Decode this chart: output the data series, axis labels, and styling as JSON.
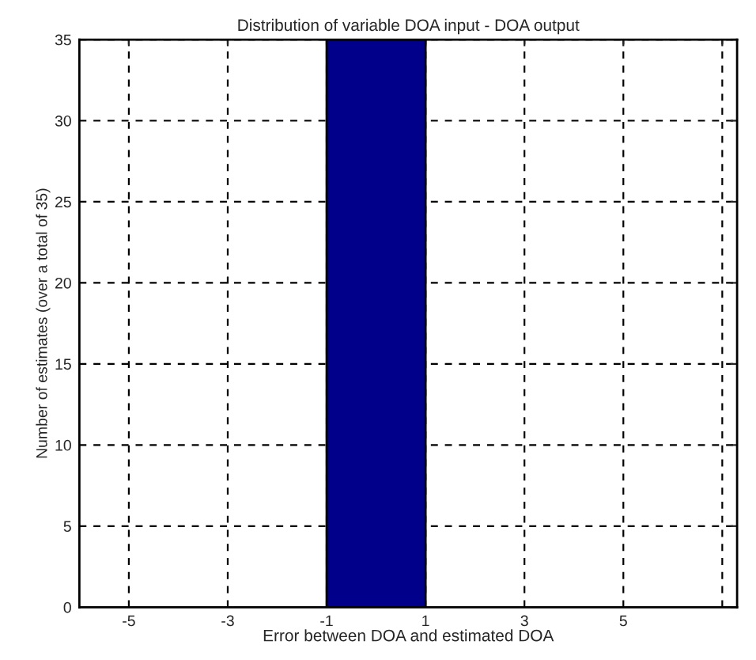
{
  "chart_data": {
    "type": "histogram",
    "title": "Distribution of variable DOA input - DOA output",
    "xlabel": "Error between DOA and estimated DOA",
    "ylabel": "Number of estimates (over a total of 35)",
    "bins": [
      -1,
      1
    ],
    "values": [
      35
    ],
    "color": "#00008b",
    "xlim": [
      -6,
      7.3
    ],
    "xticks": [
      -5,
      -3,
      -1,
      1,
      3,
      5,
      {
        "value": 7,
        "label": null
      }
    ],
    "ylim": [
      0,
      35
    ],
    "yticks": [
      0,
      5,
      10,
      15,
      20,
      25,
      30,
      35
    ],
    "grid": true
  }
}
